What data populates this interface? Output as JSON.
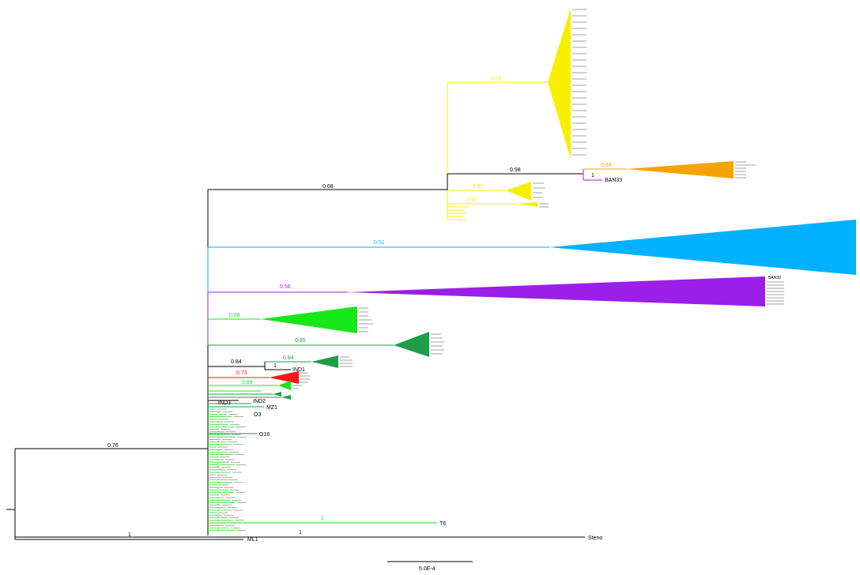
{
  "colors": {
    "black": "#000000",
    "yellow": "#f7ef00",
    "orange": "#f5a300",
    "purple": "#9b1fe6",
    "blue": "#00b1ff",
    "lightgreen": "#17e617",
    "darkgreen": "#1f9e4a",
    "red": "#ff1414",
    "stripgreen": "#2cd62c"
  },
  "support": {
    "root": "0.76",
    "root_bottom": "1",
    "steno_branch": "1",
    "clade_main": "0.68",
    "yellow_top": "0.79",
    "orange_branch": "0.98",
    "orange_inner": "0.64",
    "ban33_inner": "1",
    "yellow_mid": "0.83",
    "yellow_low": "0.95",
    "blue": "0.51",
    "purple": "0.56",
    "lightgreen": "0.68",
    "darkgreen_big": "0.85",
    "darkgreen_small_outer": "0.84",
    "darkgreen_small": "0.84",
    "ind_inner": "1",
    "red": "0.73",
    "green_small": "0.89",
    "t6": "1"
  },
  "labels": {
    "steno": "Steno",
    "ml1": "ML1",
    "ban33": "BAN33",
    "ban39": "BAN39",
    "ind1": "IND1",
    "ind2": "IND2",
    "ind3": "IND3",
    "mz1": "MZ1",
    "o16": "O16",
    "t6": "T6",
    "o3": "O3"
  },
  "scale_bar": {
    "label": "5.0E-4"
  }
}
